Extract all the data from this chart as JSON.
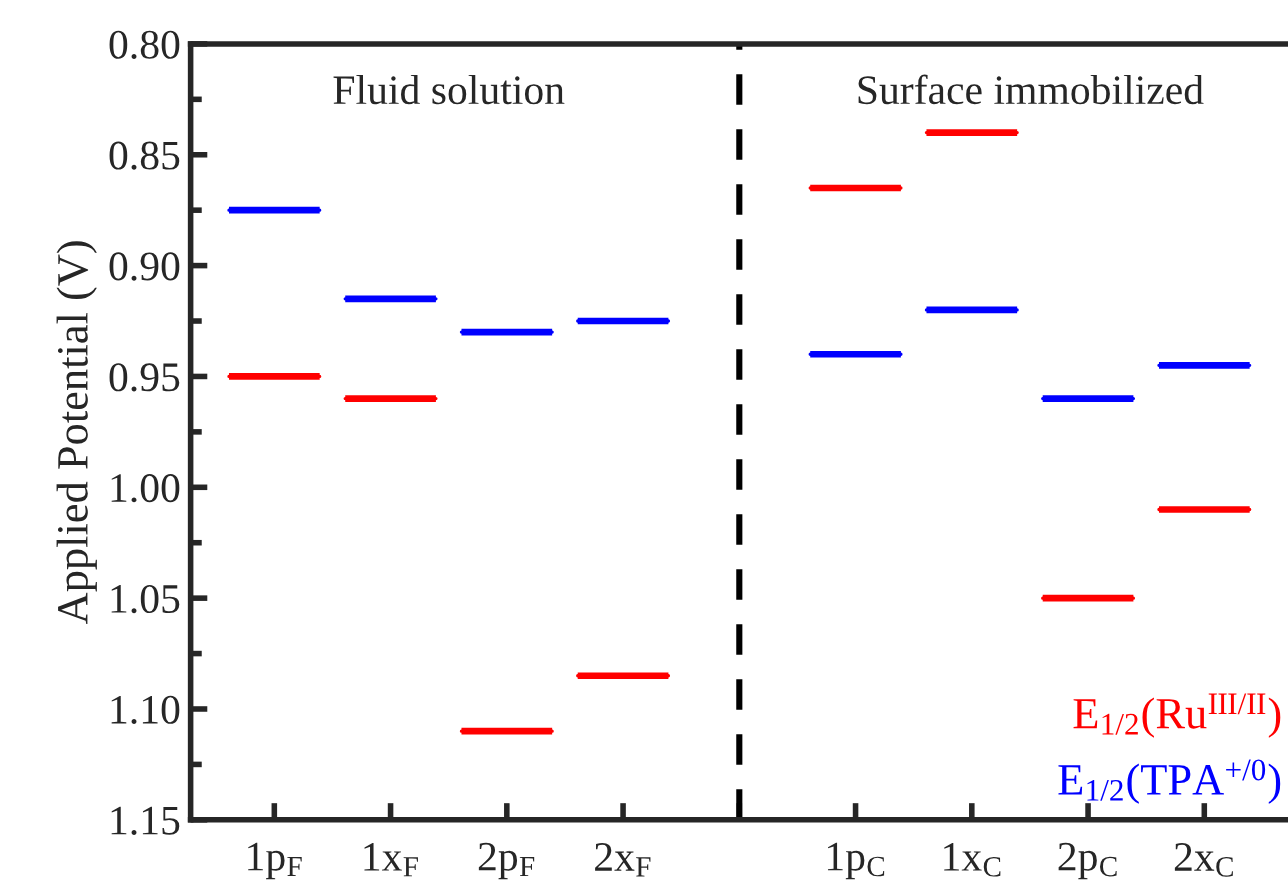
{
  "chart_data": {
    "type": "box",
    "ylabel": "Applied Potential (V)",
    "categories": [
      "1p$_{F}$",
      "1x$_{F}$",
      "2p$_{F}$",
      "2x$_{F}$",
      null,
      "1p$_{C}$",
      "1x$_{C}$",
      "2p$_{C}$",
      "2x$_{C}$"
    ],
    "series": [
      {
        "name": "E$_{1/2}$(Ru$^{III/II}$)",
        "color": "#ff0000",
        "boxes": [
          {
            "low": 0.95,
            "q1": 0.95,
            "median": 0.95,
            "q3": 0.95,
            "high": 0.95
          },
          {
            "low": 0.96,
            "q1": 0.96,
            "median": 0.96,
            "q3": 0.96,
            "high": 0.96
          },
          {
            "low": 1.11,
            "q1": 1.11,
            "median": 1.11,
            "q3": 1.11,
            "high": 1.11
          },
          {
            "low": 1.085,
            "q1": 1.085,
            "median": 1.085,
            "q3": 1.085,
            "high": 1.085
          },
          null,
          {
            "low": 0.865,
            "q1": 0.865,
            "median": 0.865,
            "q3": 0.865,
            "high": 0.865
          },
          {
            "low": 0.84,
            "q1": 0.84,
            "median": 0.84,
            "q3": 0.84,
            "high": 0.84
          },
          {
            "low": 1.05,
            "q1": 1.05,
            "median": 1.05,
            "q3": 1.05,
            "high": 1.05
          },
          {
            "low": 1.01,
            "q1": 1.01,
            "median": 1.01,
            "q3": 1.01,
            "high": 1.01
          }
        ]
      },
      {
        "name": "E$_{1/2}$(TPA$^{+/0}$)",
        "color": "#0000ff",
        "boxes": [
          {
            "low": 0.875,
            "q1": 0.875,
            "median": 0.875,
            "q3": 0.875,
            "high": 0.875
          },
          {
            "low": 0.915,
            "q1": 0.915,
            "median": 0.915,
            "q3": 0.915,
            "high": 0.915
          },
          {
            "low": 0.93,
            "q1": 0.93,
            "median": 0.93,
            "q3": 0.93,
            "high": 0.93
          },
          {
            "low": 0.925,
            "q1": 0.925,
            "median": 0.925,
            "q3": 0.925,
            "high": 0.925
          },
          null,
          {
            "low": 0.94,
            "q1": 0.94,
            "median": 0.94,
            "q3": 0.94,
            "high": 0.94
          },
          {
            "low": 0.92,
            "q1": 0.92,
            "median": 0.92,
            "q3": 0.92,
            "high": 0.92
          },
          {
            "low": 0.96,
            "q1": 0.96,
            "median": 0.96,
            "q3": 0.96,
            "high": 0.96
          },
          {
            "low": 0.945,
            "q1": 0.945,
            "median": 0.945,
            "q3": 0.945,
            "high": 0.945
          }
        ]
      }
    ],
    "ylim": [
      1.15,
      0.8
    ],
    "yticks": [
      {
        "value": 0.8,
        "label": "0.80"
      },
      0.85,
      {
        "value": 0.9,
        "label": "0.90"
      },
      0.95,
      {
        "value": 1.0,
        "label": "1.00"
      },
      1.05,
      {
        "value": 1.1,
        "label": "1.10"
      },
      1.15
    ],
    "annotations": [
      "Fluid solution",
      "Surface immobilized"
    ]
  }
}
